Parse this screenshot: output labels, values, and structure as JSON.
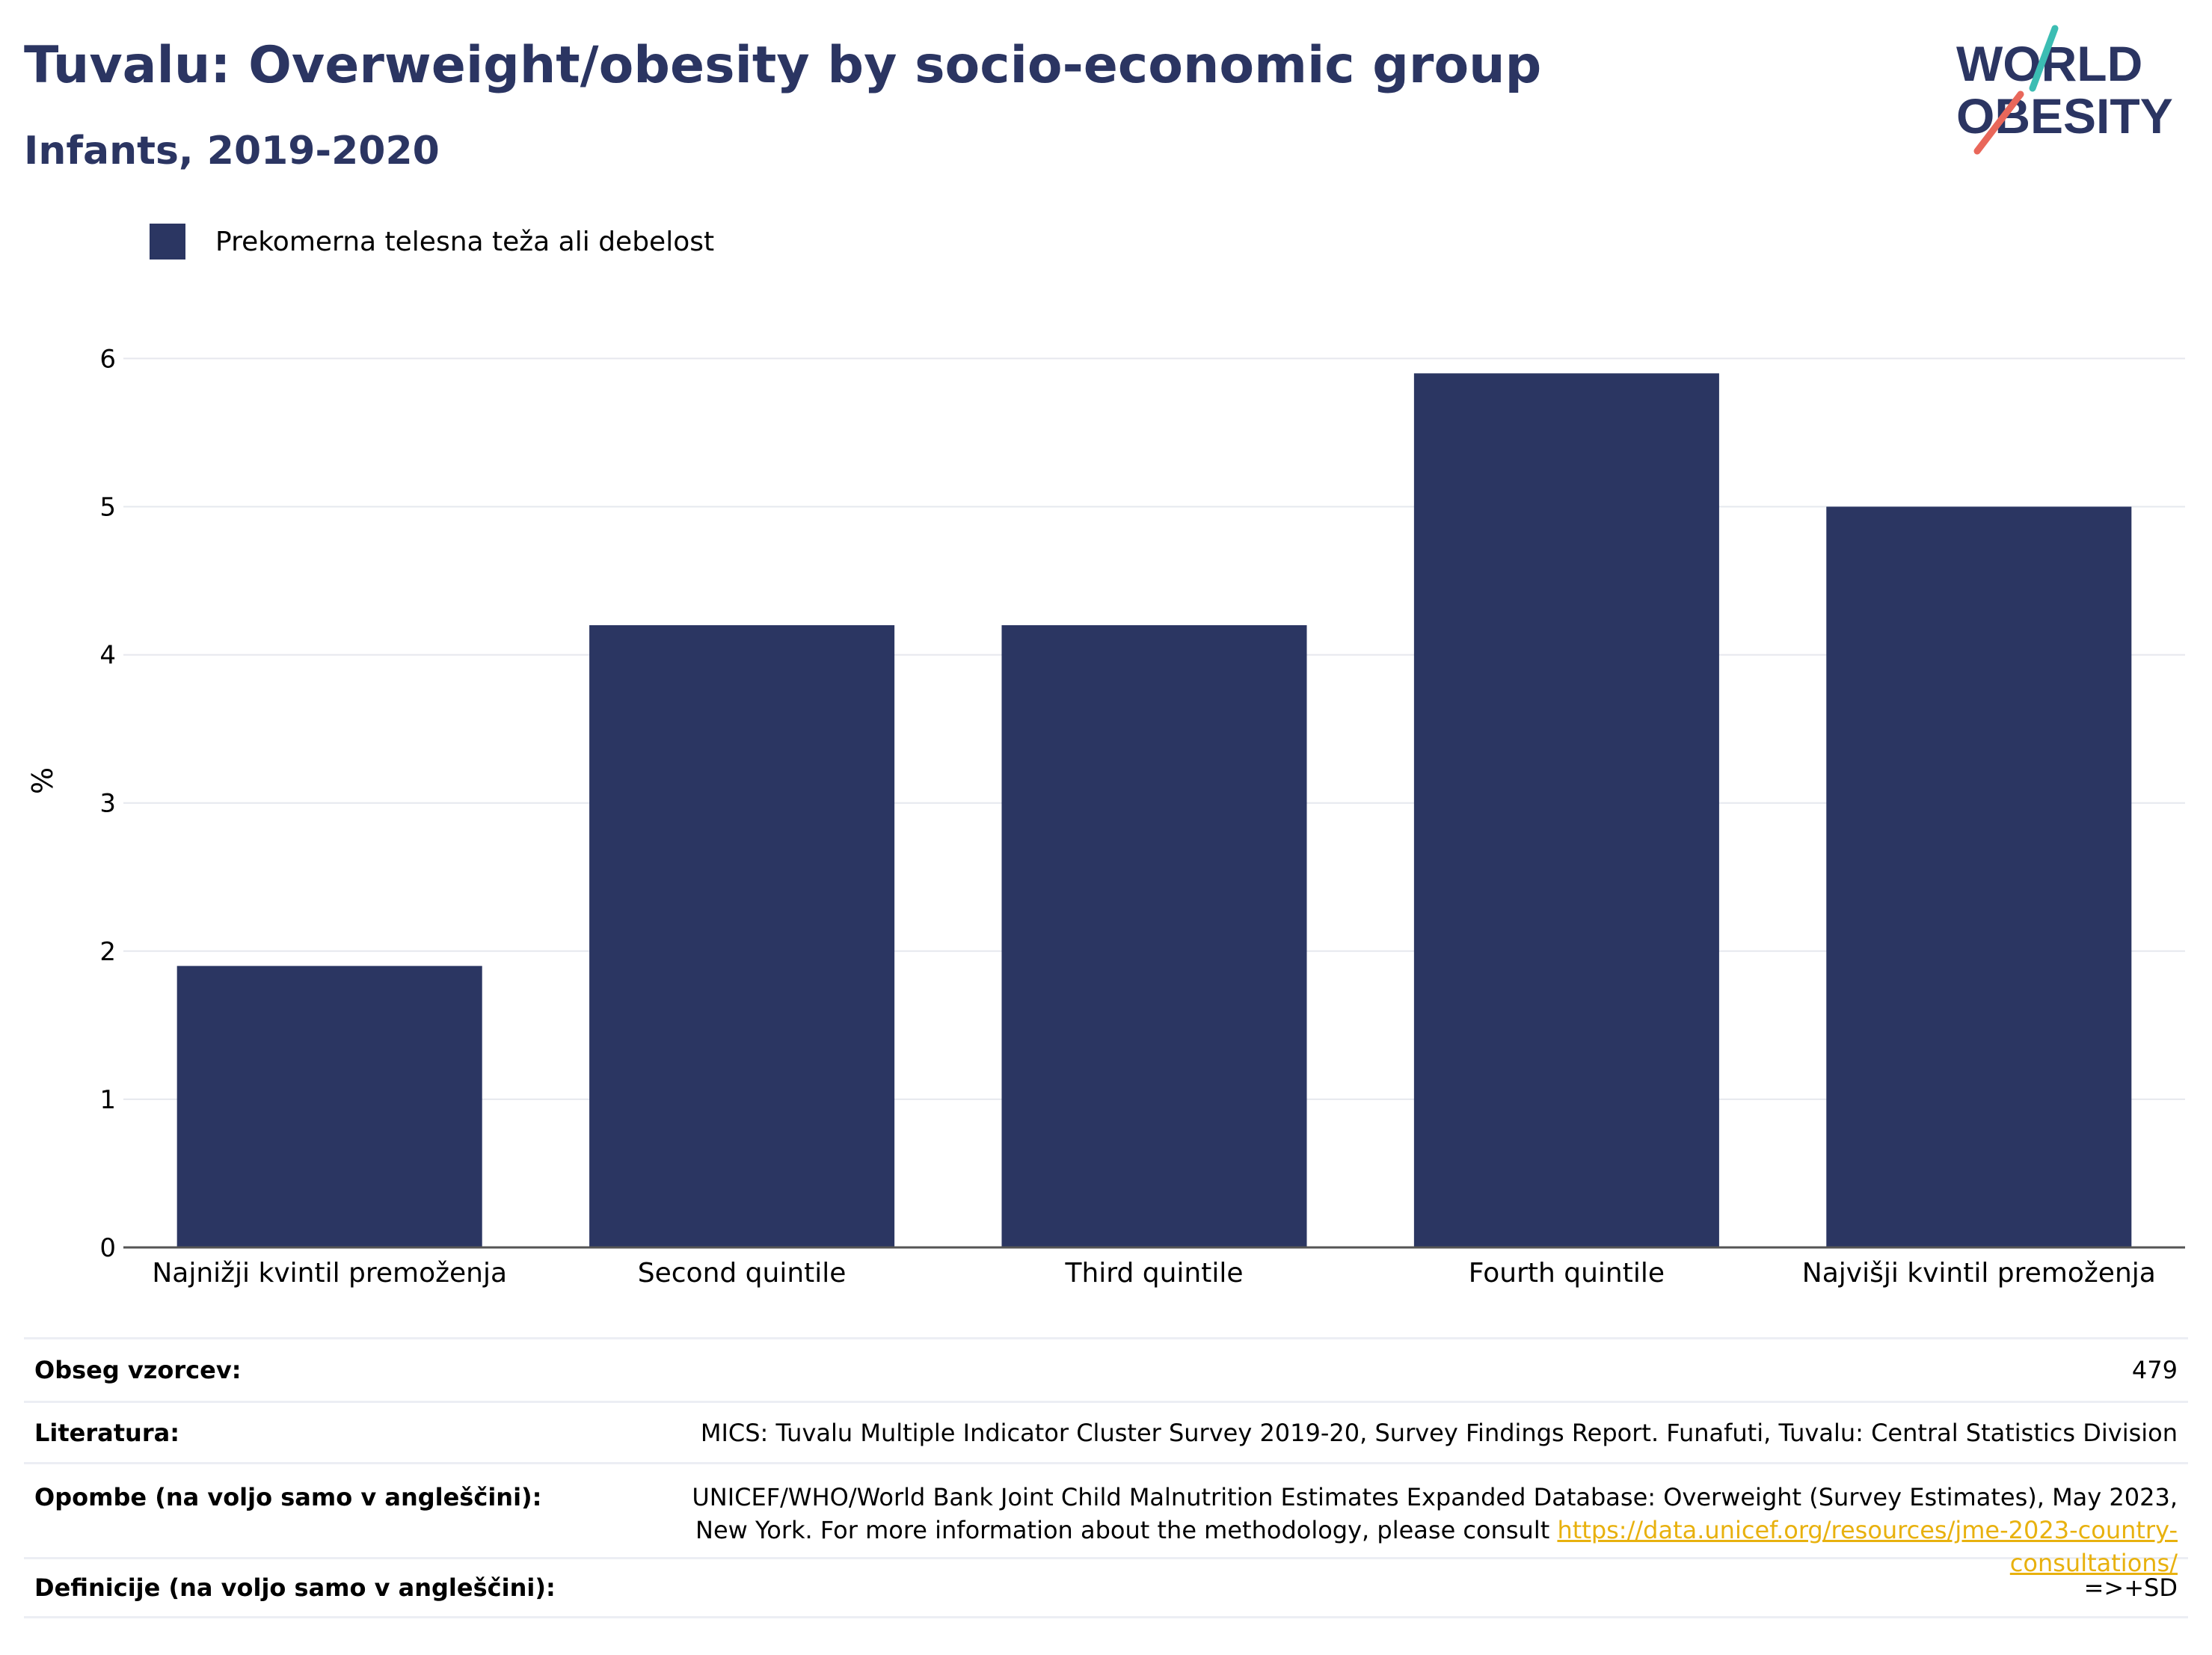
{
  "header": {
    "title": "Tuvalu: Overweight/obesity by socio-economic group",
    "subtitle": "Infants, 2019-2020"
  },
  "logo": {
    "line1": "WORLD",
    "line2": "OBESITY"
  },
  "colors": {
    "bar": "#2b3662",
    "title": "#2b3562",
    "logo_teal": "#3cbdb3",
    "logo_coral": "#e9675a",
    "link": "#e8b10e"
  },
  "chart_data": {
    "type": "bar",
    "categories": [
      "Najnižji kvintil premoženja",
      "Second quintile",
      "Third quintile",
      "Fourth quintile",
      "Najvišji kvintil premoženja"
    ],
    "series": [
      {
        "name": "Prekomerna telesna teža ali debelost",
        "values": [
          1.9,
          4.2,
          4.2,
          5.9,
          5.0
        ]
      }
    ],
    "ylabel": "%",
    "ylim": [
      0,
      6.3
    ],
    "yticks": [
      0,
      1,
      2,
      3,
      4,
      5,
      6
    ],
    "grid": true,
    "legend": "top-left"
  },
  "table": {
    "sample_label": "Obseg vzorcev:",
    "sample_value": "479",
    "lit_label": "Literatura:",
    "lit_value": "MICS: Tuvalu Multiple Indicator Cluster Survey 2019-20, Survey Findings Report. Funafuti, Tuvalu: Central Statistics Division",
    "notes_label": "Opombe (na voljo samo v angleščini):",
    "notes_text": "UNICEF/WHO/World Bank Joint Child Malnutrition Estimates Expanded Database: Overweight (Survey Estimates), May 2023, New York. For more information about the methodology, please consult",
    "notes_link": "https://data.unicef.org/resources/jme-2023-country-consultations/",
    "def_label": "Definicije (na voljo samo v angleščini):",
    "def_value": "=>+SD"
  }
}
